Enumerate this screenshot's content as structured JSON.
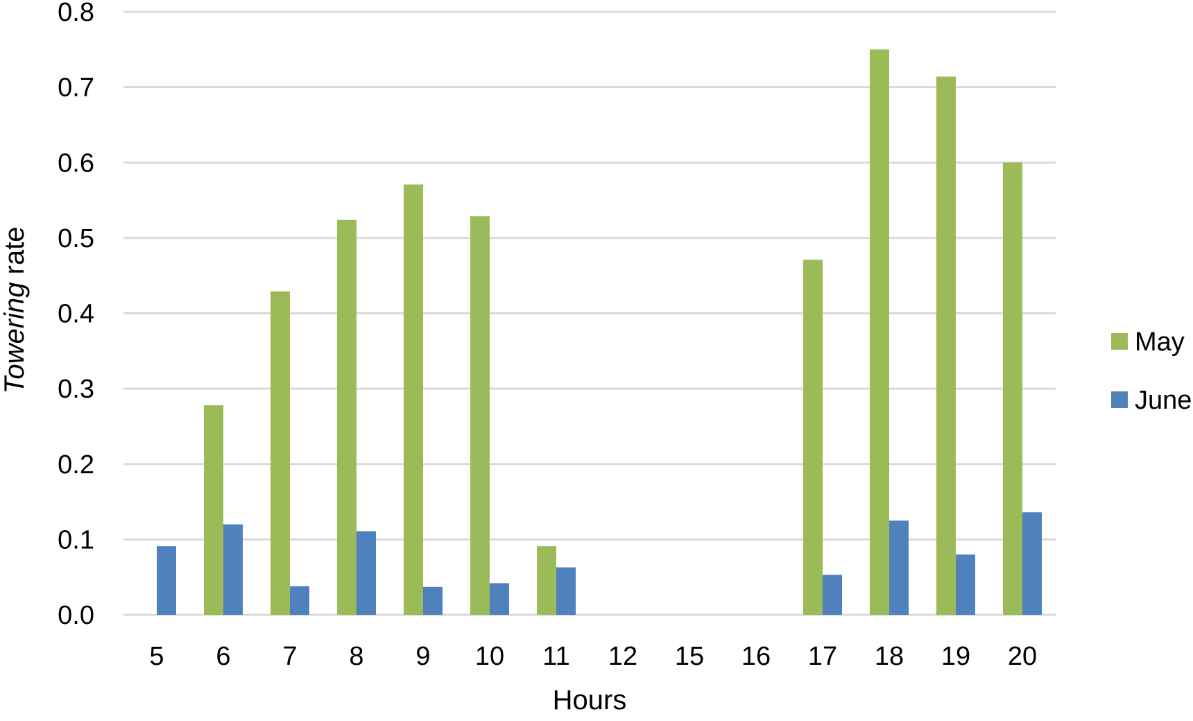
{
  "chart_data": {
    "type": "bar",
    "title": "",
    "xlabel": "Hours",
    "ylabel_italic": "Towering",
    "ylabel_rest": " rate",
    "categories": [
      "5",
      "6",
      "7",
      "8",
      "9",
      "10",
      "11",
      "12",
      "15",
      "16",
      "17",
      "18",
      "19",
      "20"
    ],
    "series": [
      {
        "name": "May",
        "color": "#9bbb59",
        "values": [
          0,
          0.278,
          0.429,
          0.524,
          0.571,
          0.529,
          0.091,
          0,
          0,
          0,
          0.471,
          0.75,
          0.714,
          0.6
        ]
      },
      {
        "name": "June",
        "color": "#4f81bd",
        "values": [
          0.091,
          0.12,
          0.038,
          0.111,
          0.037,
          0.042,
          0.063,
          0,
          0,
          0,
          0.053,
          0.125,
          0.08,
          0.136
        ]
      }
    ],
    "ylim": [
      0,
      0.8
    ],
    "yticks": [
      0,
      0.1,
      0.2,
      0.3,
      0.4,
      0.5,
      0.6,
      0.7,
      0.8
    ],
    "ytick_labels": [
      "0.0",
      "0.1",
      "0.2",
      "0.3",
      "0.4",
      "0.5",
      "0.6",
      "0.7",
      "0.8"
    ],
    "grid": true,
    "legend_position": "right"
  }
}
